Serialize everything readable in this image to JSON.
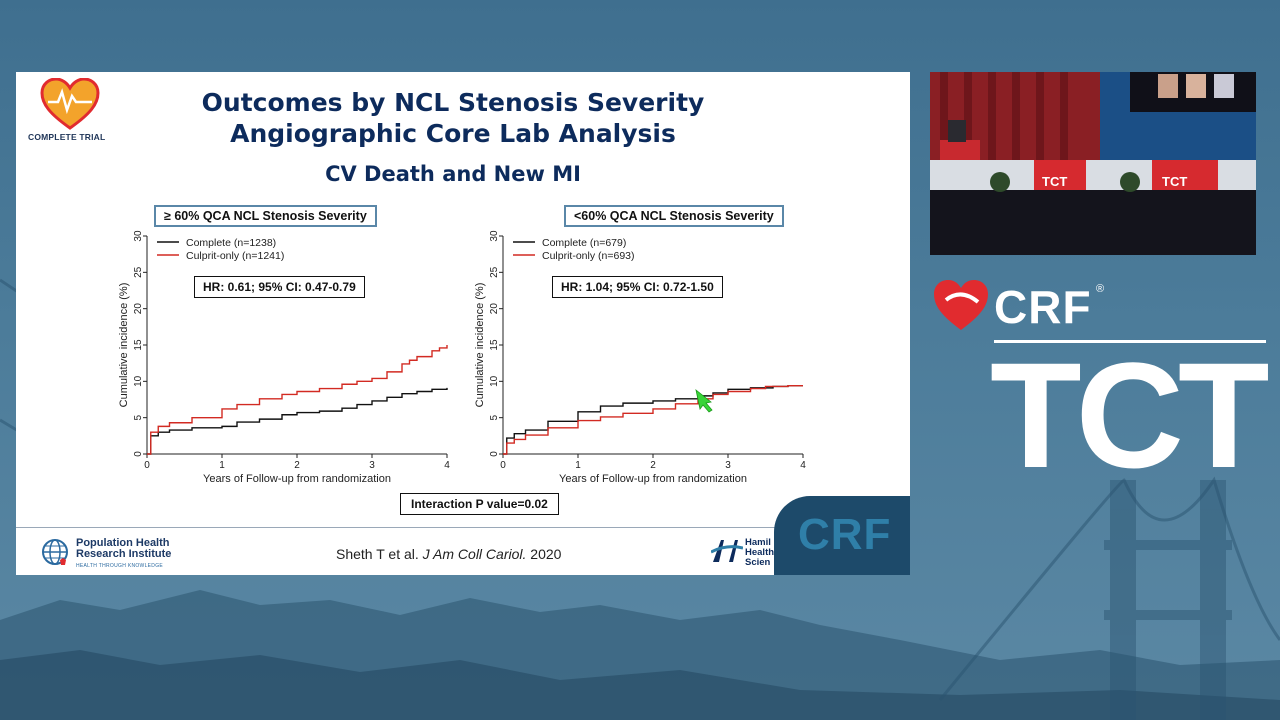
{
  "slide": {
    "title_line1": "Outcomes by NCL Stenosis Severity",
    "title_line2": "Angiographic Core Lab Analysis",
    "subtitle": "CV Death and New MI",
    "logo_caption": "COMPLETE TRIAL",
    "interaction": "Interaction P value=0.02",
    "citation_authors": "Sheth T et al. ",
    "citation_journal": "J Am Coll Cariol.",
    "citation_year": " 2020",
    "phri_line1": "Population Health",
    "phri_line2": "Research Institute",
    "phri_tagline": "HEALTH THROUGH KNOWLEDGE",
    "hamilton_line1": "Hamil",
    "hamilton_line2": "Health",
    "hamilton_line3": "Scien",
    "corner_brand": "CRF"
  },
  "branding": {
    "crf": "CRF",
    "registered": "®",
    "tct": "TCT",
    "accent_red": "#e12b2f",
    "navy": "#0d2b5c"
  },
  "chart_data": [
    {
      "type": "line",
      "panel_label": "≥ 60% QCA NCL Stenosis Severity",
      "hr_text": "HR: 0.61; 95% CI: 0.47-0.79",
      "xlabel": "Years of Follow-up from randomization",
      "ylabel": "Cumulative incidence (%)",
      "xlim": [
        0,
        4
      ],
      "ylim": [
        0,
        30
      ],
      "xticks": [
        "0",
        "1",
        "2",
        "3",
        "4"
      ],
      "yticks": [
        "0",
        "5",
        "10",
        "15",
        "20",
        "25",
        "30"
      ],
      "legend_position": "top-left",
      "series": [
        {
          "name": "Complete (n=1238)",
          "color": "#111111",
          "x": [
            0,
            0.05,
            0.15,
            0.3,
            0.6,
            1.0,
            1.2,
            1.5,
            1.8,
            2.0,
            2.3,
            2.6,
            2.8,
            3.0,
            3.2,
            3.4,
            3.6,
            3.8,
            4.0
          ],
          "y": [
            0,
            2.5,
            3.0,
            3.3,
            3.6,
            3.8,
            4.4,
            4.8,
            5.4,
            5.7,
            5.9,
            6.3,
            6.8,
            7.3,
            7.8,
            8.3,
            8.6,
            8.9,
            9.1
          ]
        },
        {
          "name": "Culprit-only (n=1241)",
          "color": "#d22a22",
          "x": [
            0,
            0.05,
            0.15,
            0.3,
            0.6,
            1.0,
            1.2,
            1.5,
            1.8,
            2.0,
            2.3,
            2.6,
            2.8,
            3.0,
            3.2,
            3.4,
            3.5,
            3.6,
            3.8,
            3.9,
            4.0
          ],
          "y": [
            0,
            3.0,
            3.8,
            4.3,
            5.0,
            6.2,
            6.8,
            7.6,
            8.2,
            8.6,
            9.0,
            9.6,
            10.0,
            10.4,
            11.3,
            12.4,
            12.9,
            13.4,
            14.2,
            14.6,
            15.0
          ]
        }
      ]
    },
    {
      "type": "line",
      "panel_label": "<60% QCA NCL Stenosis Severity",
      "hr_text": "HR: 1.04; 95% CI: 0.72-1.50",
      "xlabel": "Years of Follow-up from randomization",
      "ylabel": "Cumulative incidence (%)",
      "xlim": [
        0,
        4
      ],
      "ylim": [
        0,
        30
      ],
      "xticks": [
        "0",
        "1",
        "2",
        "3",
        "4"
      ],
      "yticks": [
        "0",
        "5",
        "10",
        "15",
        "20",
        "25",
        "30"
      ],
      "legend_position": "top-left",
      "series": [
        {
          "name": "Complete (n=679)",
          "color": "#111111",
          "x": [
            0,
            0.05,
            0.15,
            0.3,
            0.6,
            1.0,
            1.3,
            1.6,
            2.0,
            2.3,
            2.6,
            2.8,
            3.0,
            3.3,
            3.6,
            3.8,
            4.0
          ],
          "y": [
            0,
            2.2,
            2.8,
            3.3,
            4.5,
            5.8,
            6.6,
            7.0,
            7.3,
            7.6,
            8.0,
            8.4,
            8.9,
            9.1,
            9.3,
            9.4,
            9.4
          ]
        },
        {
          "name": "Culprit-only (n=693)",
          "color": "#d22a22",
          "x": [
            0,
            0.05,
            0.15,
            0.3,
            0.6,
            1.0,
            1.3,
            1.6,
            2.0,
            2.3,
            2.6,
            2.8,
            3.0,
            3.3,
            3.5,
            3.8,
            4.0
          ],
          "y": [
            0,
            1.5,
            2.0,
            2.6,
            3.6,
            4.6,
            5.1,
            5.6,
            6.2,
            6.9,
            7.6,
            8.2,
            8.6,
            9.0,
            9.3,
            9.4,
            9.4
          ]
        }
      ]
    }
  ]
}
